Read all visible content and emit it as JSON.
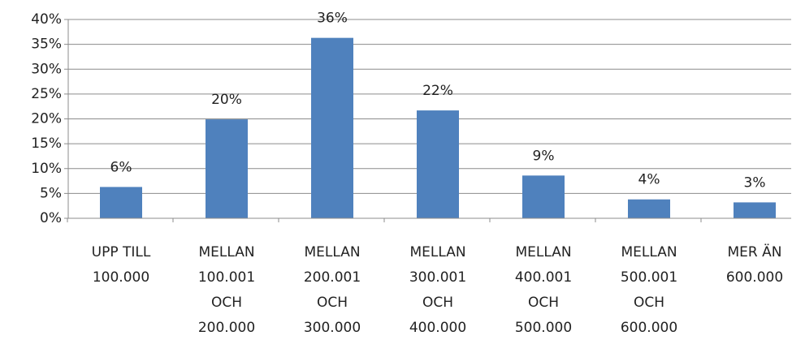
{
  "chart_data": {
    "type": "bar",
    "categories": [
      "UPP TILL\n100.000",
      "MELLAN\n100.001\nOCH\n200.000",
      "MELLAN\n200.001\nOCH\n300.000",
      "MELLAN\n300.001\nOCH\n400.000",
      "MELLAN\n400.001\nOCH\n500.000",
      "MELLAN\n500.001\nOCH\n600.000",
      "MER ÄN\n600.000"
    ],
    "values": [
      6.3,
      19.9,
      36.3,
      21.7,
      8.6,
      3.8,
      3.2
    ],
    "value_labels": [
      "6%",
      "20%",
      "36%",
      "22%",
      "9%",
      "4%",
      "3%"
    ],
    "color": "#4f81bd",
    "ylim": [
      0,
      40
    ],
    "yticks": [
      {
        "value": 0,
        "label": "0%"
      },
      {
        "value": 5,
        "label": "5%"
      },
      {
        "value": 10,
        "label": "10%"
      },
      {
        "value": 15,
        "label": "15%"
      },
      {
        "value": 20,
        "label": "20%"
      },
      {
        "value": 25,
        "label": "25%"
      },
      {
        "value": 30,
        "label": "30%"
      },
      {
        "value": 35,
        "label": "35%"
      },
      {
        "value": 40,
        "label": "40%"
      }
    ],
    "grid": true
  }
}
